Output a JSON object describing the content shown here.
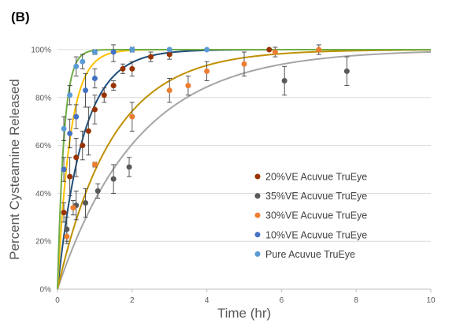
{
  "panel_label": "(B)",
  "chart_data": {
    "type": "scatter",
    "title": "",
    "xlabel": "Time (hr)",
    "ylabel": "Percent Cysteamine Released",
    "xlim": [
      0,
      10
    ],
    "ylim": [
      0,
      100
    ],
    "x_ticks": [
      0,
      2,
      4,
      6,
      8,
      10
    ],
    "x_tick_labels": [
      "0",
      "2",
      "4",
      "6",
      "8",
      "10"
    ],
    "y_ticks": [
      0,
      20,
      40,
      60,
      80,
      100
    ],
    "y_tick_labels": [
      "0%",
      "20%",
      "40%",
      "60%",
      "80%",
      "100%"
    ],
    "grid": "horizontal",
    "legend_position": "right",
    "series": [
      {
        "name": "20%VE Acuvue TruEye",
        "color": "#993300",
        "curve_color": "#1f4e79",
        "x": [
          0.17,
          0.33,
          0.5,
          0.67,
          0.83,
          1.0,
          1.25,
          1.5,
          1.75,
          2.0,
          2.5,
          3.0,
          5.67
        ],
        "y": [
          32,
          47,
          55,
          60,
          66,
          75,
          81,
          85,
          92,
          92,
          97,
          98,
          100
        ],
        "err": [
          4,
          8,
          8,
          6,
          10,
          6,
          3,
          2,
          2,
          3,
          2,
          2,
          0
        ]
      },
      {
        "name": "35%VE Acuvue TruEye",
        "color": "#595959",
        "curve_color": "#a5a5a5",
        "x": [
          0.25,
          0.5,
          0.75,
          1.08,
          1.5,
          1.92,
          6.08,
          7.75
        ],
        "y": [
          25,
          35,
          36,
          41,
          46,
          51,
          87,
          91
        ],
        "err": [
          5,
          6,
          6,
          3,
          6,
          4,
          6,
          6
        ]
      },
      {
        "name": "30%VE Acuvue TruEye",
        "color": "#ed7d31",
        "curve_color": "#bf9000",
        "x": [
          0.25,
          0.42,
          1.0,
          2.0,
          3.0,
          3.5,
          4.0,
          5.0,
          5.83,
          7.0
        ],
        "y": [
          22,
          34,
          52,
          72,
          83,
          85,
          91,
          94,
          99,
          100
        ],
        "err": [
          3,
          3,
          1,
          6,
          5,
          4,
          4,
          5,
          2,
          2
        ]
      },
      {
        "name": "10%VE Acuvue TruEye",
        "color": "#4472c4",
        "curve_color": "#ffc000",
        "x": [
          0.17,
          0.33,
          0.5,
          0.75,
          1.0,
          1.5,
          2.0,
          3.0
        ],
        "y": [
          50,
          65,
          72,
          83,
          88,
          99,
          100,
          100
        ],
        "err": [
          5,
          6,
          5,
          7,
          4,
          4,
          1,
          0
        ]
      },
      {
        "name": "Pure Acuvue TruEye",
        "color": "#5b9bd5",
        "curve_color": "#70ad47",
        "x": [
          0.17,
          0.33,
          0.5,
          0.67,
          1.0,
          2.0,
          3.0,
          4.0
        ],
        "y": [
          67,
          81,
          93,
          95,
          99,
          100,
          100,
          100
        ],
        "err": [
          5,
          4,
          4,
          3,
          1,
          0,
          0,
          0
        ]
      }
    ]
  }
}
